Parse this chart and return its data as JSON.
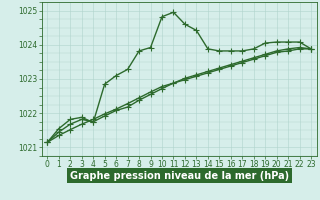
{
  "title": "Graphe pression niveau de la mer (hPa)",
  "bg_color": "#d6eeea",
  "plot_bg_color": "#d6eeea",
  "label_bar_color": "#2d6a2d",
  "line_color": "#2d6a2d",
  "grid_color": "#b0d4cc",
  "ylim": [
    1020.75,
    1025.25
  ],
  "yticks": [
    1021,
    1022,
    1023,
    1024,
    1025
  ],
  "xlim": [
    -0.5,
    23.5
  ],
  "xticks": [
    0,
    1,
    2,
    3,
    4,
    5,
    6,
    7,
    8,
    9,
    10,
    11,
    12,
    13,
    14,
    15,
    16,
    17,
    18,
    19,
    20,
    21,
    22,
    23
  ],
  "line1_x": [
    0,
    1,
    2,
    3,
    4,
    5,
    6,
    7,
    8,
    9,
    10,
    11,
    12,
    13,
    14,
    15,
    16,
    17,
    18,
    19,
    20,
    21,
    22,
    23
  ],
  "line1_y": [
    1021.15,
    1021.55,
    1021.82,
    1021.88,
    1021.73,
    1022.85,
    1023.1,
    1023.28,
    1023.82,
    1023.92,
    1024.82,
    1024.95,
    1024.6,
    1024.42,
    1023.88,
    1023.82,
    1023.82,
    1023.82,
    1023.88,
    1024.05,
    1024.08,
    1024.08,
    1024.08,
    1023.88
  ],
  "line2_x": [
    0,
    1,
    2,
    3,
    4,
    5,
    6,
    7,
    8,
    9,
    10,
    11,
    12,
    13,
    14,
    15,
    16,
    17,
    18,
    19,
    20,
    21,
    22,
    23
  ],
  "line2_y": [
    1021.15,
    1021.45,
    1021.68,
    1021.82,
    1021.75,
    1021.92,
    1022.08,
    1022.18,
    1022.38,
    1022.55,
    1022.72,
    1022.88,
    1023.02,
    1023.12,
    1023.22,
    1023.32,
    1023.42,
    1023.52,
    1023.62,
    1023.72,
    1023.82,
    1023.88,
    1023.92,
    1023.88
  ],
  "line3_x": [
    0,
    1,
    2,
    3,
    4,
    5,
    6,
    7,
    8,
    9,
    10,
    11,
    12,
    13,
    14,
    15,
    16,
    17,
    18,
    19,
    20,
    21,
    22,
    23
  ],
  "line3_y": [
    1021.15,
    1021.35,
    1021.52,
    1021.68,
    1021.82,
    1021.98,
    1022.12,
    1022.28,
    1022.45,
    1022.62,
    1022.78,
    1022.88,
    1022.98,
    1023.08,
    1023.18,
    1023.28,
    1023.38,
    1023.48,
    1023.58,
    1023.68,
    1023.78,
    1023.82,
    1023.88,
    1023.88
  ],
  "marker": "+",
  "markersize": 4,
  "linewidth": 1.0,
  "tick_fontsize": 5.5,
  "title_fontsize": 7.0,
  "label_text_color": "#ffffff"
}
